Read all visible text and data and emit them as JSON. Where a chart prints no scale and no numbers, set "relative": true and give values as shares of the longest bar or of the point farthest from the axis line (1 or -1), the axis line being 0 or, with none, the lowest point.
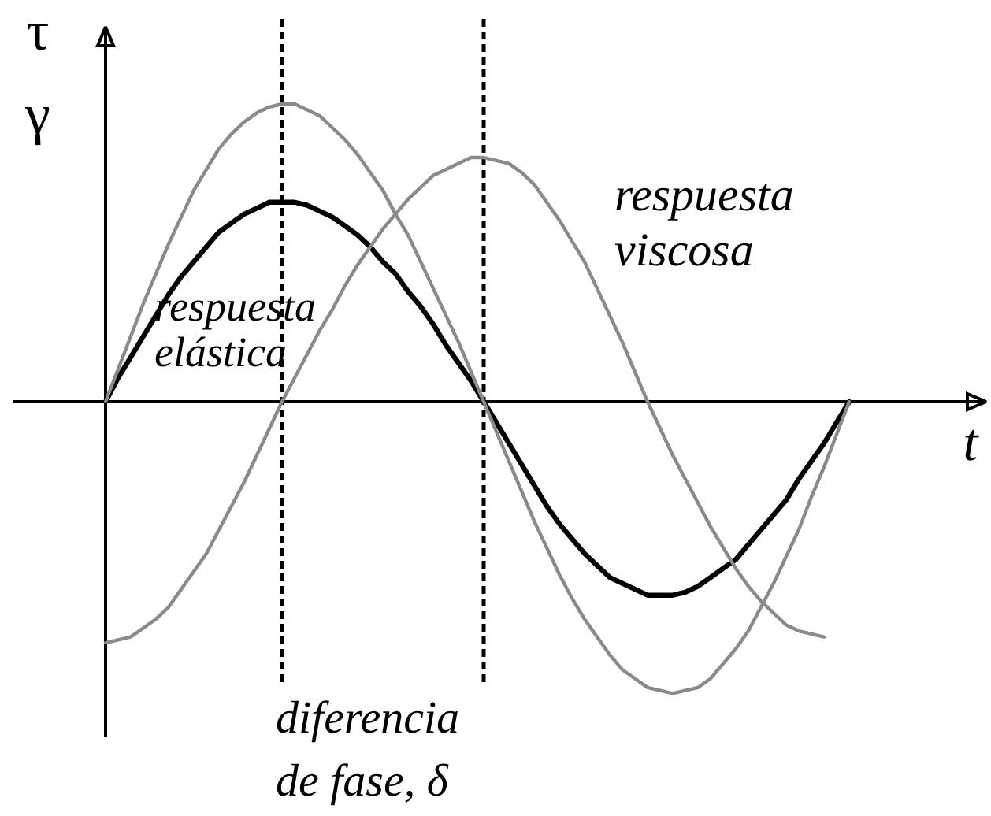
{
  "chart_data": {
    "type": "line",
    "relative": true,
    "line_style": "solid",
    "ylabel": "τ γ",
    "xlabel": "t",
    "categories": [
      null,
      null,
      null,
      null,
      null,
      null,
      null,
      null,
      null,
      null,
      null,
      null,
      null,
      null,
      null,
      null,
      null,
      null,
      null,
      null,
      null,
      null,
      null,
      null,
      null,
      null,
      null,
      null,
      null,
      null,
      null,
      null,
      null,
      null,
      null,
      null,
      null,
      null,
      null,
      null,
      null,
      null,
      null,
      null,
      null,
      null,
      null,
      null,
      null,
      null,
      null,
      null,
      null,
      null,
      null,
      null,
      null,
      null,
      null,
      null
    ],
    "series": [
      {
        "color": "#000000",
        "values": [
          0,
          0.08,
          0.15,
          0.22,
          0.29,
          0.36,
          0.42,
          0.47,
          0.52,
          0.57,
          0.6,
          0.63,
          0.65,
          0.67,
          0.67,
          0.67,
          0.66,
          0.64,
          0.62,
          0.59,
          0.56,
          0.52,
          0.47,
          0.43,
          0.37,
          0.32,
          0.26,
          0.19,
          0.13,
          0.07,
          0,
          -0.07,
          -0.14,
          -0.21,
          -0.28,
          -0.35,
          -0.41,
          -0.46,
          -0.51,
          -0.55,
          -0.59,
          -0.61,
          -0.63,
          -0.65,
          -0.65,
          -0.65,
          -0.64,
          -0.62,
          -0.59,
          -0.56,
          -0.53,
          -0.48,
          -0.43,
          -0.38,
          -0.33,
          -0.26,
          -0.2,
          -0.14,
          -0.07,
          0
        ]
      },
      {
        "color": "#8a8a8a",
        "values": [
          0,
          0.11,
          0.22,
          0.33,
          0.43,
          0.53,
          0.62,
          0.71,
          0.78,
          0.85,
          0.9,
          0.94,
          0.97,
          0.99,
          1,
          1,
          0.98,
          0.96,
          0.92,
          0.88,
          0.83,
          0.77,
          0.71,
          0.63,
          0.56,
          0.47,
          0.38,
          0.29,
          0.2,
          0.1,
          0,
          -0.1,
          -0.2,
          -0.3,
          -0.4,
          -0.49,
          -0.58,
          -0.66,
          -0.73,
          -0.79,
          -0.85,
          -0.9,
          -0.93,
          -0.96,
          -0.97,
          -0.98,
          -0.97,
          -0.96,
          -0.93,
          -0.88,
          -0.83,
          -0.77,
          -0.69,
          -0.61,
          -0.52,
          -0.43,
          -0.32,
          -0.22,
          -0.11,
          0
        ]
      },
      {
        "color": "#8a8a8a",
        "values": [
          -0.81,
          -0.8,
          -0.79,
          -0.76,
          -0.73,
          -0.69,
          -0.63,
          -0.57,
          -0.51,
          -0.43,
          -0.35,
          -0.27,
          -0.18,
          -0.09,
          0,
          0.08,
          0.16,
          0.24,
          0.31,
          0.39,
          0.46,
          0.52,
          0.58,
          0.63,
          0.68,
          0.72,
          0.76,
          0.78,
          0.8,
          0.82,
          0.82,
          0.81,
          0.8,
          0.77,
          0.73,
          0.67,
          0.61,
          0.54,
          0.47,
          0.38,
          0.29,
          0.2,
          0.1,
          0,
          -0.09,
          -0.18,
          -0.26,
          -0.34,
          -0.42,
          -0.49,
          -0.56,
          -0.62,
          -0.67,
          -0.71,
          -0.75,
          -0.77,
          -0.78,
          -0.79,
          null,
          null
        ]
      }
    ],
    "annotations": [
      "respuesta elástica",
      "respuesta viscosa",
      "diferencia de fase, δ"
    ]
  }
}
